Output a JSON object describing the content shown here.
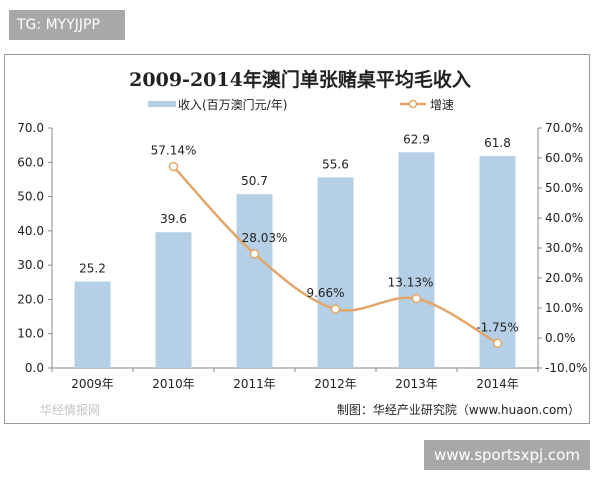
{
  "watermark_top": "TG: MYYJJPP",
  "watermark_bottom": "www.sportsxpj.com",
  "source": "制图：华经产业研究院（www.huaon.com）",
  "logo_text": "华经情报网",
  "chart_data": {
    "type": "bar+line",
    "title": "2009-2014年澳门单张赌桌平均毛收入",
    "categories": [
      "2009年",
      "2010年",
      "2011年",
      "2012年",
      "2013年",
      "2014年"
    ],
    "series": [
      {
        "name": "收入(百万澳门元/年)",
        "type": "bar",
        "axis": "left",
        "color": "#b5d0e6",
        "values": [
          25.2,
          39.6,
          50.7,
          55.6,
          62.9,
          61.8
        ],
        "labels": [
          "25.2",
          "39.6",
          "50.7",
          "55.6",
          "62.9",
          "61.8"
        ]
      },
      {
        "name": "增速",
        "type": "line",
        "axis": "right",
        "color": "#e3a66a",
        "values": [
          null,
          57.14,
          28.03,
          9.66,
          13.13,
          -1.75
        ],
        "labels": [
          "",
          "57.14%",
          "28.03%",
          "9.66%",
          "13.13%",
          "-1.75%"
        ]
      }
    ],
    "left_axis": {
      "ylim": [
        0,
        70
      ],
      "ticks": [
        "0.0",
        "10.0",
        "20.0",
        "30.0",
        "40.0",
        "50.0",
        "60.0",
        "70.0"
      ]
    },
    "right_axis": {
      "ylim": [
        -10,
        70
      ],
      "ticks": [
        "-10.0%",
        "0.0%",
        "10.0%",
        "20.0%",
        "30.0%",
        "40.0%",
        "50.0%",
        "60.0%",
        "70.0%"
      ]
    },
    "legend": "top",
    "grid": false
  }
}
